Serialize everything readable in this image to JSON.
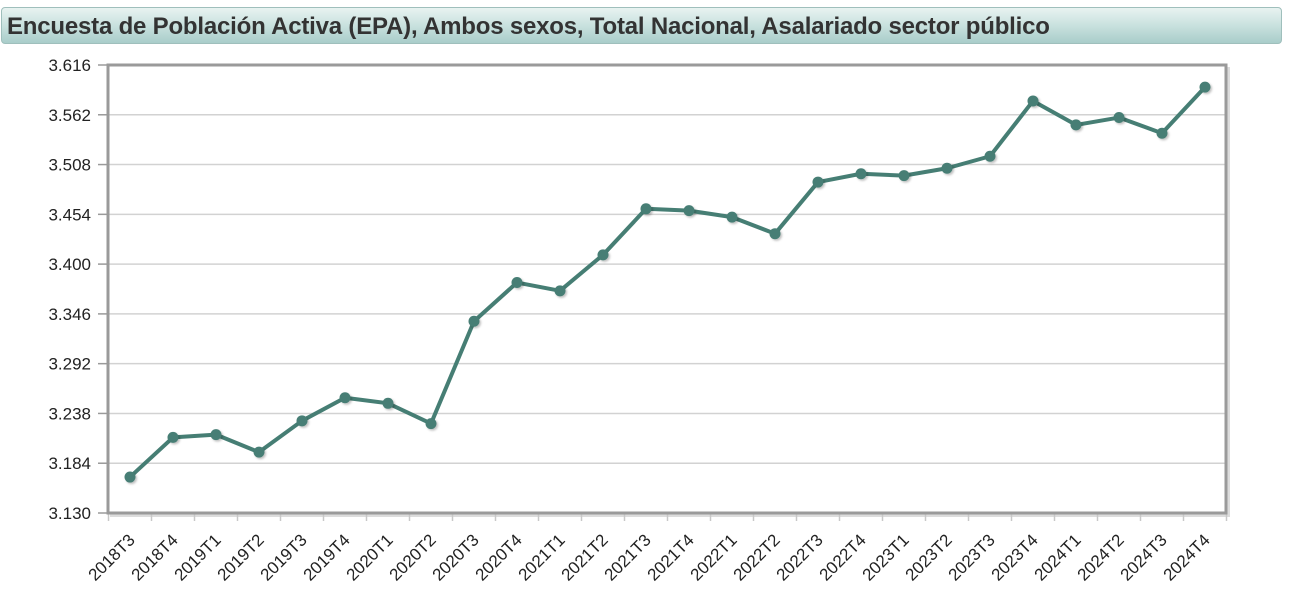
{
  "header": {
    "title": "Encuesta de Población Activa (EPA), Ambos sexos, Total Nacional, Asalariado sector público"
  },
  "colors": {
    "line": "#467e74",
    "grid": "#d2d2d2",
    "axis": "#9a9a9a",
    "title_bg_top": "#e8f3f1",
    "title_bg_bottom": "#a9cdca"
  },
  "chart_data": {
    "type": "line",
    "title": "Encuesta de Población Activa (EPA), Ambos sexos, Total Nacional, Asalariado sector público",
    "xlabel": "",
    "ylabel": "",
    "ylim": [
      3.13,
      3.616
    ],
    "yticks": [
      "3.616",
      "3.562",
      "3.508",
      "3.454",
      "3.400",
      "3.346",
      "3.292",
      "3.238",
      "3.184",
      "3.130"
    ],
    "grid": true,
    "legend": null,
    "categories": [
      "2018T3",
      "2018T4",
      "2019T1",
      "2019T2",
      "2019T3",
      "2019T4",
      "2020T1",
      "2020T2",
      "2020T3",
      "2020T4",
      "2021T1",
      "2021T2",
      "2021T3",
      "2021T4",
      "2022T1",
      "2022T2",
      "2022T3",
      "2022T4",
      "2023T1",
      "2023T2",
      "2023T3",
      "2023T4",
      "2024T1",
      "2024T2",
      "2024T3",
      "2024T4"
    ],
    "series": [
      {
        "name": "Asalariado sector público",
        "values": [
          3.169,
          3.212,
          3.215,
          3.196,
          3.23,
          3.255,
          3.249,
          3.227,
          3.338,
          3.38,
          3.371,
          3.41,
          3.46,
          3.458,
          3.451,
          3.433,
          3.489,
          3.498,
          3.496,
          3.504,
          3.517,
          3.577,
          3.551,
          3.559,
          3.542,
          3.592
        ]
      }
    ]
  }
}
